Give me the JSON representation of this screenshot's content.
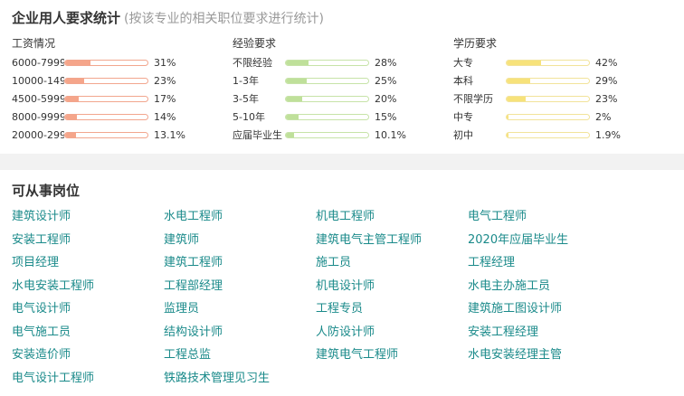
{
  "stats": {
    "title": "企业用人要求统计",
    "subtitle": "(按该专业的相关职位要求进行统计)",
    "columns": [
      {
        "heading": "工资情况",
        "fill_color": "#f5a58a",
        "border_color": "#f2a68e",
        "rows": [
          {
            "label": "6000-7999",
            "pct": "31%",
            "value": 31
          },
          {
            "label": "10000-149",
            "pct": "23%",
            "value": 23
          },
          {
            "label": "4500-5999",
            "pct": "17%",
            "value": 17
          },
          {
            "label": "8000-9999",
            "pct": "14%",
            "value": 14
          },
          {
            "label": "20000-299",
            "pct": "13.1%",
            "value": 13.1
          }
        ]
      },
      {
        "heading": "经验要求",
        "fill_color": "#bfe09a",
        "border_color": "#c7e3a8",
        "rows": [
          {
            "label": "不限经验",
            "pct": "28%",
            "value": 28
          },
          {
            "label": "1-3年",
            "pct": "25%",
            "value": 25
          },
          {
            "label": "3-5年",
            "pct": "20%",
            "value": 20
          },
          {
            "label": "5-10年",
            "pct": "15%",
            "value": 15
          },
          {
            "label": "应届毕业生",
            "pct": "10.1%",
            "value": 10.1
          }
        ]
      },
      {
        "heading": "学历要求",
        "fill_color": "#f7e27a",
        "border_color": "#f2e39a",
        "rows": [
          {
            "label": "大专",
            "pct": "42%",
            "value": 42
          },
          {
            "label": "本科",
            "pct": "29%",
            "value": 29
          },
          {
            "label": "不限学历",
            "pct": "23%",
            "value": 23
          },
          {
            "label": "中专",
            "pct": "2%",
            "value": 2
          },
          {
            "label": "初中",
            "pct": "1.9%",
            "value": 1.9
          }
        ]
      }
    ]
  },
  "jobs": {
    "title": "可从事岗位",
    "link_color": "#1a8a8a",
    "items": [
      "建筑设计师",
      "水电工程师",
      "机电工程师",
      "电气工程师",
      "安装工程师",
      "建筑师",
      "建筑电气主管工程师",
      "2020年应届毕业生",
      "项目经理",
      "建筑工程师",
      "施工员",
      "工程经理",
      "水电安装工程师",
      "工程部经理",
      "机电设计师",
      "水电主办施工员",
      "电气设计师",
      "监理员",
      "工程专员",
      "建筑施工图设计师",
      "电气施工员",
      "结构设计师",
      "人防设计师",
      "安装工程经理",
      "安装造价师",
      "工程总监",
      "建筑电气工程师",
      "水电安装经理主管",
      "电气设计工程师",
      "铁路技术管理见习生"
    ]
  }
}
